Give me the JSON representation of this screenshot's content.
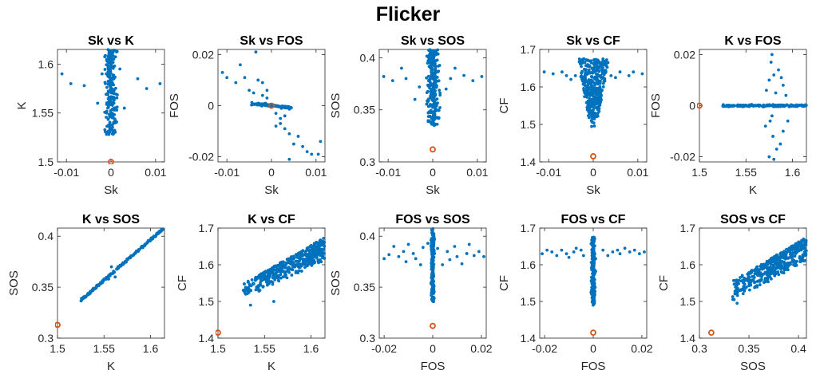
{
  "figure": {
    "title": "Flicker"
  },
  "colors": {
    "data": "#0072BD",
    "reference": "#D95319",
    "axis": "#262626"
  },
  "chart_data": [
    {
      "type": "scatter",
      "title": "Sk vs K",
      "xlabel": "Sk",
      "ylabel": "K",
      "xlim": [
        -0.012,
        0.012
      ],
      "ylim": [
        1.5,
        1.615
      ],
      "xticks": [
        -0.01,
        0,
        0.01
      ],
      "xtick_labels": [
        "-0.01",
        "0",
        "0.01"
      ],
      "yticks": [
        1.5,
        1.55,
        1.6
      ],
      "ytick_labels": [
        "1.5",
        "1.55",
        "1.6"
      ],
      "series": [
        {
          "role": "data",
          "points": [
            [
              -0.011,
              1.59
            ],
            [
              -0.009,
              1.58
            ],
            [
              -0.006,
              1.578
            ],
            [
              -0.003,
              1.56
            ],
            [
              0.003,
              1.555
            ],
            [
              0.006,
              1.585
            ],
            [
              0.008,
              1.575
            ],
            [
              0.011,
              1.58
            ],
            [
              -0.002,
              1.59
            ],
            [
              0.002,
              1.595
            ],
            [
              -0.001,
              1.53
            ],
            [
              0.001,
              1.54
            ]
          ],
          "cluster": {
            "x_center": 0,
            "x_spread": 0.0012,
            "y_range": [
              1.528,
              1.615
            ],
            "count": 240
          }
        },
        {
          "role": "reference",
          "points": [
            [
              0,
              1.5
            ]
          ]
        }
      ]
    },
    {
      "type": "scatter",
      "title": "Sk vs FOS",
      "xlabel": "Sk",
      "ylabel": "FOS",
      "xlim": [
        -0.012,
        0.012
      ],
      "ylim": [
        -0.022,
        0.022
      ],
      "xticks": [
        -0.01,
        0,
        0.01
      ],
      "xtick_labels": [
        "-0.01",
        "0",
        "0.01"
      ],
      "yticks": [
        -0.02,
        0,
        0.02
      ],
      "ytick_labels": [
        "-0.02",
        "0",
        "0.02"
      ],
      "series": [
        {
          "role": "data",
          "points": [
            [
              -0.011,
              0.013
            ],
            [
              -0.01,
              0.011
            ],
            [
              -0.008,
              0.009
            ],
            [
              -0.007,
              0.016
            ],
            [
              -0.006,
              0.011
            ],
            [
              -0.005,
              0.006
            ],
            [
              -0.004,
              0.005
            ],
            [
              -0.0035,
              0.021
            ],
            [
              -0.003,
              0.01
            ],
            [
              -0.002,
              0.004
            ],
            [
              -0.002,
              0.009
            ],
            [
              -0.001,
              0.003
            ],
            [
              0.001,
              -0.003
            ],
            [
              0.002,
              -0.005
            ],
            [
              0.002,
              -0.007
            ],
            [
              0.003,
              -0.009
            ],
            [
              0.003,
              -0.004
            ],
            [
              0.004,
              -0.011
            ],
            [
              0.004,
              -0.021
            ],
            [
              0.005,
              -0.015
            ],
            [
              0.006,
              -0.012
            ],
            [
              0.007,
              -0.016
            ],
            [
              0.008,
              -0.018
            ],
            [
              0.009,
              -0.019
            ],
            [
              0.011,
              -0.014
            ],
            [
              0.0105,
              -0.019
            ],
            [
              -0.001,
              0.006
            ],
            [
              0.001,
              -0.008
            ]
          ],
          "line_cluster": {
            "x_range": [
              -0.0045,
              0.0045
            ],
            "slope": -0.18,
            "spread": 0.0005,
            "count": 100
          }
        },
        {
          "role": "reference",
          "points": [
            [
              0,
              0
            ]
          ]
        }
      ]
    },
    {
      "type": "scatter",
      "title": "Sk vs SOS",
      "xlabel": "Sk",
      "ylabel": "SOS",
      "xlim": [
        -0.012,
        0.012
      ],
      "ylim": [
        0.3,
        0.408
      ],
      "xticks": [
        -0.01,
        0,
        0.01
      ],
      "xtick_labels": [
        "-0.01",
        "0",
        "0.01"
      ],
      "yticks": [
        0.3,
        0.35,
        0.4
      ],
      "ytick_labels": [
        "0.3",
        "0.35",
        "0.4"
      ],
      "series": [
        {
          "role": "data",
          "points": [
            [
              -0.011,
              0.382
            ],
            [
              -0.009,
              0.378
            ],
            [
              -0.007,
              0.39
            ],
            [
              -0.006,
              0.38
            ],
            [
              -0.004,
              0.36
            ],
            [
              -0.003,
              0.372
            ],
            [
              0.003,
              0.37
            ],
            [
              0.004,
              0.38
            ],
            [
              0.005,
              0.39
            ],
            [
              0.007,
              0.383
            ],
            [
              0.009,
              0.378
            ],
            [
              0.011,
              0.382
            ]
          ],
          "cluster": {
            "x_center": 0,
            "x_spread": 0.0013,
            "y_range": [
              0.335,
              0.408
            ],
            "count": 280
          }
        },
        {
          "role": "reference",
          "points": [
            [
              0,
              0.312
            ]
          ]
        }
      ]
    },
    {
      "type": "scatter",
      "title": "Sk vs CF",
      "xlabel": "Sk",
      "ylabel": "CF",
      "xlim": [
        -0.012,
        0.012
      ],
      "ylim": [
        1.4,
        1.7
      ],
      "xticks": [
        -0.01,
        0,
        0.01
      ],
      "xtick_labels": [
        "-0.01",
        "0",
        "0.01"
      ],
      "yticks": [
        1.4,
        1.5,
        1.6,
        1.7
      ],
      "ytick_labels": [
        "1.4",
        "1.5",
        "1.6",
        "1.7"
      ],
      "series": [
        {
          "role": "data",
          "points": [
            [
              -0.011,
              1.64
            ],
            [
              -0.009,
              1.635
            ],
            [
              -0.007,
              1.64
            ],
            [
              -0.006,
              1.63
            ],
            [
              -0.005,
              1.62
            ],
            [
              -0.004,
              1.63
            ],
            [
              0.004,
              1.63
            ],
            [
              0.005,
              1.625
            ],
            [
              0.006,
              1.64
            ],
            [
              0.008,
              1.63
            ],
            [
              0.009,
              1.64
            ],
            [
              0.011,
              1.635
            ]
          ],
          "funnel_cluster": {
            "x_center": 0,
            "y_top": 1.675,
            "y_bottom": 1.49,
            "width_top": 0.0035,
            "width_bottom": 0.0007,
            "count": 380
          }
        },
        {
          "role": "reference",
          "points": [
            [
              0,
              1.415
            ]
          ]
        }
      ]
    },
    {
      "type": "scatter",
      "title": "K vs FOS",
      "xlabel": "K",
      "ylabel": "FOS",
      "xlim": [
        1.5,
        1.615
      ],
      "ylim": [
        -0.022,
        0.022
      ],
      "xticks": [
        1.5,
        1.55,
        1.6
      ],
      "xtick_labels": [
        "1.5",
        "1.55",
        "1.6"
      ],
      "yticks": [
        -0.02,
        0,
        0.02
      ],
      "ytick_labels": [
        "-0.02",
        "0",
        "0.02"
      ],
      "series": [
        {
          "role": "data",
          "points": [
            [
              1.578,
              0.02
            ],
            [
              1.577,
              0.017
            ],
            [
              1.58,
              0.012
            ],
            [
              1.575,
              0.01
            ],
            [
              1.585,
              0.014
            ],
            [
              1.59,
              0.008
            ],
            [
              1.572,
              0.006
            ],
            [
              1.582,
              0.005
            ],
            [
              1.588,
              0.011
            ],
            [
              1.593,
              0.004
            ],
            [
              1.576,
              -0.006
            ],
            [
              1.579,
              -0.012
            ],
            [
              1.583,
              -0.017
            ],
            [
              1.575,
              -0.02
            ],
            [
              1.587,
              -0.015
            ],
            [
              1.59,
              -0.01
            ],
            [
              1.571,
              -0.008
            ],
            [
              1.58,
              -0.021
            ],
            [
              1.578,
              -0.004
            ],
            [
              1.595,
              -0.006
            ]
          ],
          "band": {
            "x_range": [
              1.525,
              1.615
            ],
            "y_center": 0,
            "spread": 0.0004,
            "count": 160
          }
        },
        {
          "role": "reference",
          "points": [
            [
              1.5,
              0
            ]
          ]
        }
      ]
    },
    {
      "type": "scatter",
      "title": "K vs SOS",
      "xlabel": "K",
      "ylabel": "SOS",
      "xlim": [
        1.5,
        1.615
      ],
      "ylim": [
        0.3,
        0.408
      ],
      "xticks": [
        1.5,
        1.55,
        1.6
      ],
      "xtick_labels": [
        "1.5",
        "1.55",
        "1.6"
      ],
      "yticks": [
        0.3,
        0.35,
        0.4
      ],
      "ytick_labels": [
        "0.3",
        "0.35",
        "0.4"
      ],
      "series": [
        {
          "role": "data",
          "points": [
            [
              1.556,
              0.362
            ],
            [
              1.562,
              0.36
            ],
            [
              1.558,
              0.37
            ],
            [
              1.555,
              0.358
            ]
          ],
          "line_cluster": {
            "x_range": [
              1.525,
              1.613
            ],
            "y_at_start": 0.337,
            "y_at_end": 0.407,
            "spread": 0.0012,
            "count": 200
          }
        },
        {
          "role": "reference",
          "points": [
            [
              1.5,
              0.313
            ]
          ]
        }
      ]
    },
    {
      "type": "scatter",
      "title": "K vs CF",
      "xlabel": "K",
      "ylabel": "CF",
      "xlim": [
        1.5,
        1.615
      ],
      "ylim": [
        1.4,
        1.7
      ],
      "xticks": [
        1.5,
        1.55,
        1.6
      ],
      "xtick_labels": [
        "1.5",
        "1.55",
        "1.6"
      ],
      "yticks": [
        1.4,
        1.5,
        1.6,
        1.7
      ],
      "ytick_labels": [
        "1.4",
        "1.5",
        "1.6",
        "1.7"
      ],
      "series": [
        {
          "role": "data",
          "points": [
            [
              1.56,
              1.5
            ],
            [
              1.535,
              1.49
            ]
          ],
          "wedge_cluster": {
            "x_range": [
              1.525,
              1.615
            ],
            "upper": [
              1.545,
              1.675
            ],
            "lower": [
              1.505,
              1.61
            ],
            "count": 420
          }
        },
        {
          "role": "reference",
          "points": [
            [
              1.5,
              1.415
            ]
          ]
        }
      ]
    },
    {
      "type": "scatter",
      "title": "FOS vs SOS",
      "xlabel": "FOS",
      "ylabel": "SOS",
      "xlim": [
        -0.022,
        0.022
      ],
      "ylim": [
        0.3,
        0.408
      ],
      "xticks": [
        -0.02,
        0,
        0.02
      ],
      "xtick_labels": [
        "-0.02",
        "0",
        "0.02"
      ],
      "yticks": [
        0.3,
        0.35,
        0.4
      ],
      "ytick_labels": [
        "0.3",
        "0.35",
        "0.4"
      ],
      "series": [
        {
          "role": "data",
          "points": [
            [
              -0.02,
              0.378
            ],
            [
              -0.018,
              0.382
            ],
            [
              -0.016,
              0.39
            ],
            [
              -0.014,
              0.38
            ],
            [
              -0.012,
              0.385
            ],
            [
              -0.011,
              0.375
            ],
            [
              -0.01,
              0.392
            ],
            [
              -0.008,
              0.383
            ],
            [
              -0.007,
              0.378
            ],
            [
              -0.005,
              0.372
            ],
            [
              -0.004,
              0.389
            ],
            [
              -0.002,
              0.393
            ],
            [
              0.002,
              0.388
            ],
            [
              0.004,
              0.372
            ],
            [
              0.006,
              0.385
            ],
            [
              0.007,
              0.377
            ],
            [
              0.009,
              0.39
            ],
            [
              0.01,
              0.38
            ],
            [
              0.012,
              0.373
            ],
            [
              0.014,
              0.383
            ],
            [
              0.015,
              0.392
            ],
            [
              0.017,
              0.381
            ],
            [
              0.019,
              0.385
            ],
            [
              0.021,
              0.38
            ]
          ],
          "cluster": {
            "x_center": 0,
            "x_spread": 0.0006,
            "y_range": [
              0.335,
              0.408
            ],
            "count": 200
          }
        },
        {
          "role": "reference",
          "points": [
            [
              0,
              0.312
            ]
          ]
        }
      ]
    },
    {
      "type": "scatter",
      "title": "FOS vs CF",
      "xlabel": "FOS",
      "ylabel": "CF",
      "xlim": [
        -0.022,
        0.022
      ],
      "ylim": [
        1.4,
        1.7
      ],
      "xticks": [
        -0.02,
        0,
        0.02
      ],
      "xtick_labels": [
        "-0.02",
        "0",
        "0.02"
      ],
      "yticks": [
        1.4,
        1.5,
        1.6,
        1.7
      ],
      "ytick_labels": [
        "1.4",
        "1.5",
        "1.6",
        "1.7"
      ],
      "series": [
        {
          "role": "data",
          "points": [
            [
              -0.021,
              1.63
            ],
            [
              -0.019,
              1.64
            ],
            [
              -0.017,
              1.635
            ],
            [
              -0.015,
              1.625
            ],
            [
              -0.013,
              1.64
            ],
            [
              -0.011,
              1.63
            ],
            [
              -0.01,
              1.62
            ],
            [
              -0.008,
              1.635
            ],
            [
              -0.007,
              1.645
            ],
            [
              -0.005,
              1.64
            ],
            [
              -0.004,
              1.625
            ],
            [
              0.004,
              1.64
            ],
            [
              0.006,
              1.625
            ],
            [
              0.008,
              1.635
            ],
            [
              0.01,
              1.64
            ],
            [
              0.011,
              1.63
            ],
            [
              0.013,
              1.645
            ],
            [
              0.015,
              1.635
            ],
            [
              0.017,
              1.64
            ],
            [
              0.019,
              1.63
            ],
            [
              0.021,
              1.635
            ]
          ],
          "cluster": {
            "x_center": 0,
            "x_spread": 0.0007,
            "y_range": [
              1.49,
              1.675
            ],
            "count": 200
          }
        },
        {
          "role": "reference",
          "points": [
            [
              0,
              1.415
            ]
          ]
        }
      ]
    },
    {
      "type": "scatter",
      "title": "SOS vs CF",
      "xlabel": "SOS",
      "ylabel": "CF",
      "xlim": [
        0.3,
        0.408
      ],
      "ylim": [
        1.4,
        1.7
      ],
      "xticks": [
        0.3,
        0.35,
        0.4
      ],
      "xtick_labels": [
        "0.3",
        "0.35",
        "0.4"
      ],
      "yticks": [
        1.4,
        1.5,
        1.6,
        1.7
      ],
      "ytick_labels": [
        "1.4",
        "1.5",
        "1.6",
        "1.7"
      ],
      "series": [
        {
          "role": "data",
          "points": [
            [
              0.338,
              1.495
            ],
            [
              0.335,
              1.505
            ]
          ],
          "wedge_cluster": {
            "x_range": [
              0.333,
              0.408
            ],
            "upper": [
              1.555,
              1.675
            ],
            "lower": [
              1.5,
              1.61
            ],
            "count": 420
          }
        },
        {
          "role": "reference",
          "points": [
            [
              0.312,
              1.415
            ]
          ]
        }
      ]
    }
  ]
}
